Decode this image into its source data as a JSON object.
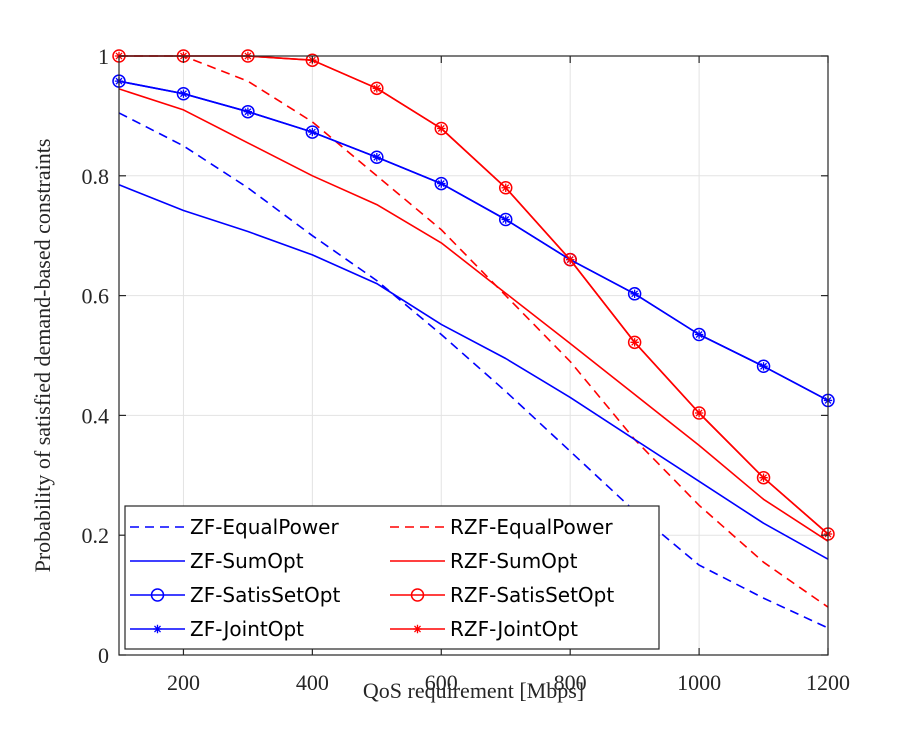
{
  "chart_data": {
    "type": "line",
    "title": "",
    "xlabel": "QoS requirement [Mbps]",
    "ylabel": "Probability of satisfied demand-based constraints",
    "xlim": [
      100,
      1200
    ],
    "ylim": [
      0,
      1
    ],
    "xticks": [
      200,
      400,
      600,
      800,
      1000,
      1200
    ],
    "yticks": [
      0,
      0.2,
      0.4,
      0.6,
      0.8,
      1
    ],
    "xtick_labels": [
      "200",
      "400",
      "600",
      "800",
      "1000",
      "1200"
    ],
    "ytick_labels": [
      "0",
      "0.2",
      "0.4",
      "0.6",
      "0.8",
      "1"
    ],
    "grid": true,
    "legend_position": "bottom-left",
    "x": [
      100,
      200,
      300,
      400,
      500,
      600,
      700,
      800,
      900,
      1000,
      1100,
      1200
    ],
    "series": [
      {
        "name": "ZF-EqualPower",
        "color": "#0000ff",
        "style": "dashed",
        "marker": "none",
        "values": [
          0.905,
          0.85,
          0.78,
          0.7,
          0.625,
          0.535,
          0.44,
          0.34,
          0.24,
          0.15,
          0.095,
          0.045
        ]
      },
      {
        "name": "RZF-EqualPower",
        "color": "#ff0000",
        "style": "dashed",
        "marker": "none",
        "values": [
          1.0,
          1.0,
          0.958,
          0.89,
          0.8,
          0.71,
          0.6,
          0.49,
          0.36,
          0.25,
          0.155,
          0.08
        ]
      },
      {
        "name": "ZF-SumOpt",
        "color": "#0000ff",
        "style": "solid",
        "marker": "none",
        "values": [
          0.785,
          0.742,
          0.707,
          0.668,
          0.62,
          0.552,
          0.495,
          0.43,
          0.36,
          0.29,
          0.22,
          0.16
        ]
      },
      {
        "name": "RZF-SumOpt",
        "color": "#ff0000",
        "style": "solid",
        "marker": "none",
        "values": [
          0.945,
          0.91,
          0.855,
          0.8,
          0.752,
          0.688,
          0.604,
          0.52,
          0.435,
          0.35,
          0.26,
          0.19
        ]
      },
      {
        "name": "ZF-SatisSetOpt",
        "color": "#0000ff",
        "style": "solid",
        "marker": "circle",
        "values": [
          0.958,
          0.937,
          0.907,
          0.873,
          0.831,
          0.787,
          0.727,
          0.66,
          0.603,
          0.535,
          0.482,
          0.425
        ]
      },
      {
        "name": "RZF-SatisSetOpt",
        "color": "#ff0000",
        "style": "solid",
        "marker": "circle",
        "values": [
          1.0,
          1.0,
          1.0,
          0.993,
          0.946,
          0.879,
          0.78,
          0.66,
          0.522,
          0.404,
          0.296,
          0.202
        ]
      },
      {
        "name": "ZF-JointOpt",
        "color": "#0000ff",
        "style": "solid",
        "marker": "star",
        "values": [
          0.958,
          0.937,
          0.907,
          0.873,
          0.831,
          0.787,
          0.727,
          0.66,
          0.603,
          0.535,
          0.482,
          0.425
        ]
      },
      {
        "name": "RZF-JointOpt",
        "color": "#ff0000",
        "style": "solid",
        "marker": "star",
        "values": [
          1.0,
          1.0,
          1.0,
          0.993,
          0.946,
          0.879,
          0.78,
          0.66,
          0.522,
          0.404,
          0.296,
          0.202
        ]
      }
    ],
    "legend": [
      {
        "label": "ZF-EqualPower",
        "color": "#0000ff",
        "style": "dashed",
        "marker": "none"
      },
      {
        "label": "RZF-EqualPower",
        "color": "#ff0000",
        "style": "dashed",
        "marker": "none"
      },
      {
        "label": "ZF-SumOpt",
        "color": "#0000ff",
        "style": "solid",
        "marker": "none"
      },
      {
        "label": "RZF-SumOpt",
        "color": "#ff0000",
        "style": "solid",
        "marker": "none"
      },
      {
        "label": "ZF-SatisSetOpt",
        "color": "#0000ff",
        "style": "solid",
        "marker": "circle"
      },
      {
        "label": "RZF-SatisSetOpt",
        "color": "#ff0000",
        "style": "solid",
        "marker": "circle"
      },
      {
        "label": "ZF-JointOpt",
        "color": "#0000ff",
        "style": "solid",
        "marker": "star"
      },
      {
        "label": "RZF-JointOpt",
        "color": "#ff0000",
        "style": "solid",
        "marker": "star"
      }
    ]
  }
}
